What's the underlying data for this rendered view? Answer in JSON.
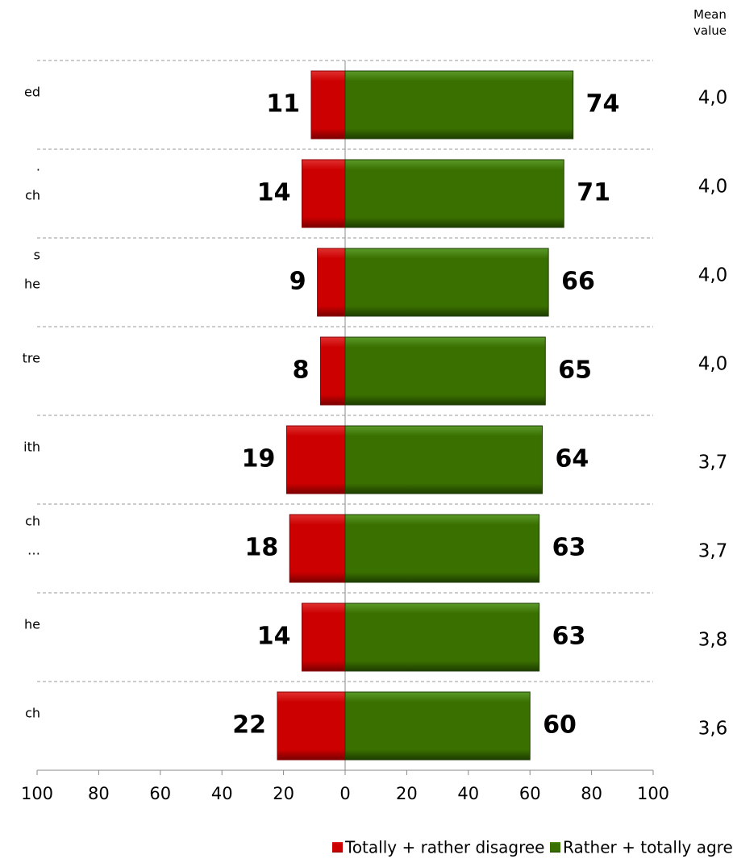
{
  "chart_data": {
    "type": "diverging_bar",
    "categories": [
      [
        "ed"
      ],
      [
        ".",
        "ch"
      ],
      [
        "s",
        "he"
      ],
      [
        "tre"
      ],
      [
        "ith"
      ],
      [
        "ch",
        "…"
      ],
      [
        "he"
      ],
      [
        "ch"
      ]
    ],
    "series": [
      {
        "name": "Totally + rather disagree",
        "color": "#cc0000",
        "direction": "left",
        "values": [
          11,
          14,
          9,
          8,
          19,
          18,
          14,
          22
        ]
      },
      {
        "name": "Rather + totally agree",
        "color": "#3a7000",
        "direction": "right",
        "values": [
          74,
          71,
          66,
          65,
          64,
          63,
          63,
          60
        ]
      }
    ],
    "xlim": [
      -100,
      100
    ],
    "xticks": [
      {
        "value": -100,
        "label": "100"
      },
      {
        "value": -80,
        "label": "80"
      },
      {
        "value": -60,
        "label": "60"
      },
      {
        "value": -40,
        "label": "40"
      },
      {
        "value": -20,
        "label": "20"
      },
      0,
      20,
      40,
      60,
      80,
      100
    ],
    "mean_value": {
      "title": "Mean value",
      "values": [
        4.0,
        4.0,
        4.0,
        4.0,
        3.7,
        3.7,
        3.8,
        3.6
      ],
      "value_labels": [
        "4,0",
        "4,0",
        "4,0",
        "4,0",
        "3,7",
        "3,7",
        "3,8",
        "3,6"
      ]
    },
    "legend": "bottom"
  }
}
